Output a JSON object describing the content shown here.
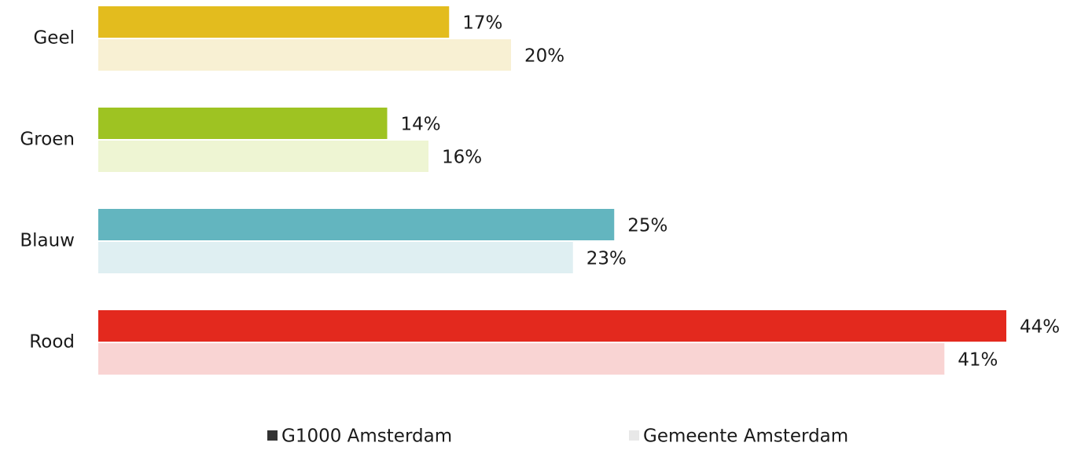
{
  "chart_data": {
    "type": "bar",
    "orientation": "horizontal",
    "categories": [
      "Geel",
      "Groen",
      "Blauw",
      "Rood"
    ],
    "series": [
      {
        "name": "G1000 Amsterdam",
        "color": "#333333",
        "colors": [
          "#e3bc1e",
          "#9ec322",
          "#63b5bf",
          "#e3291e"
        ],
        "values": [
          17,
          14,
          25,
          44
        ],
        "value_labels": [
          "17%",
          "14%",
          "25%",
          "44%"
        ]
      },
      {
        "name": "Gemeente Amsterdam",
        "color": "#e8e8e8",
        "colors": [
          "#f8f0d3",
          "#eef5d3",
          "#dfeff2",
          "#f9d4d3"
        ],
        "values": [
          20,
          16,
          23,
          41
        ],
        "value_labels": [
          "20%",
          "16%",
          "23%",
          "41%"
        ]
      }
    ],
    "legend": "bottom"
  }
}
